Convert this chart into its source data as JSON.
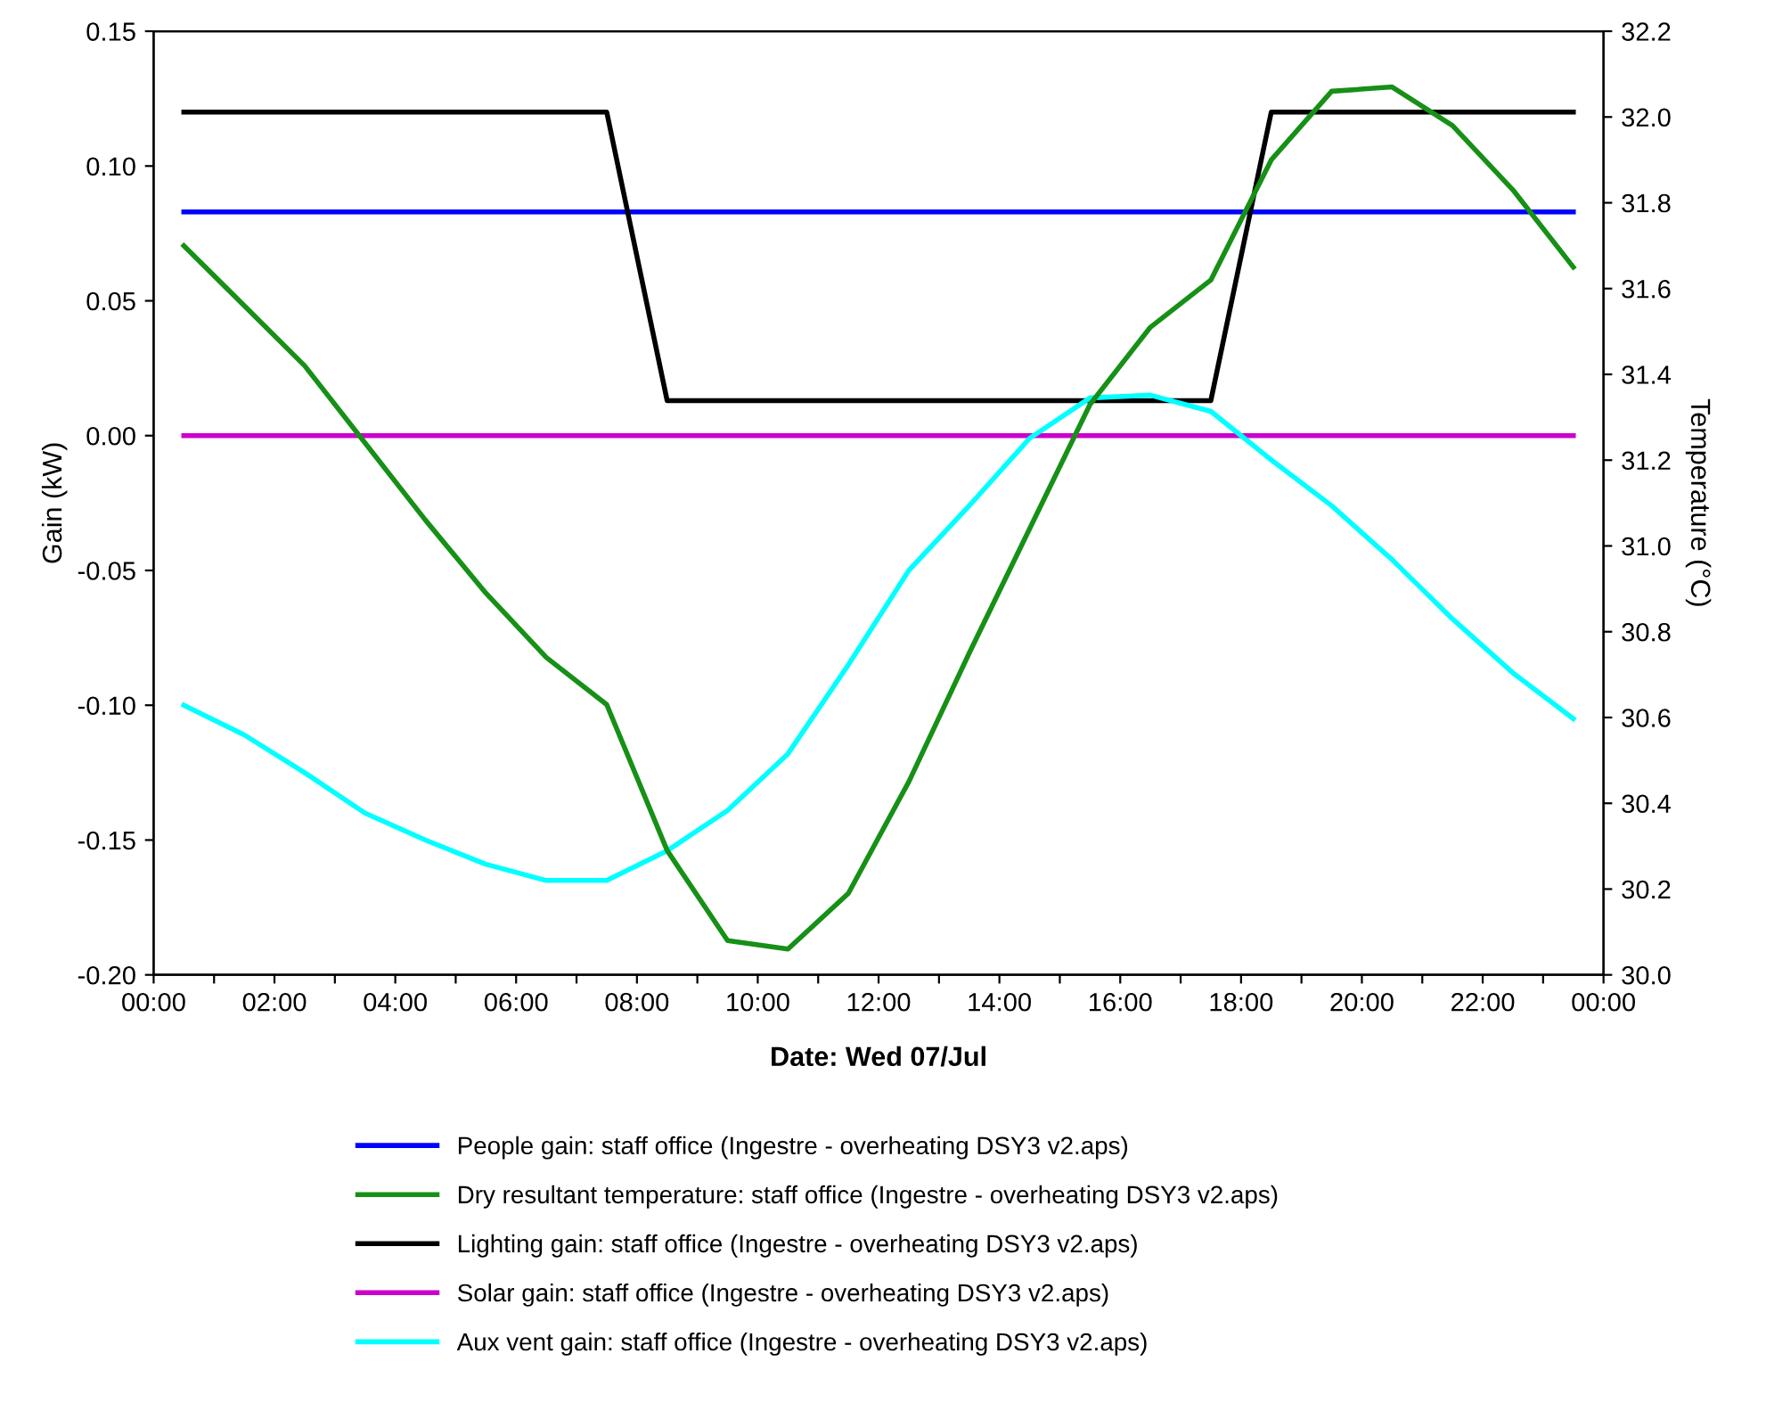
{
  "chart_data": {
    "type": "line",
    "xlabel": "Date: Wed 07/Jul",
    "ylabel": "Gain (kW)",
    "y2label": "Temperature (°C)",
    "x": [
      0.5,
      1.5,
      2.5,
      3.5,
      4.5,
      5.5,
      6.5,
      7.5,
      8.5,
      9.5,
      10.5,
      11.5,
      12.5,
      13.5,
      14.5,
      15.5,
      16.5,
      17.5,
      18.5,
      19.5,
      20.5,
      21.5,
      22.5,
      23.5
    ],
    "series": [
      {
        "name": "People gain: staff office (Ingestre - overheating DSY3 v2.aps)",
        "color": "#0000ff",
        "values": [
          0.083,
          0.083,
          0.083,
          0.083,
          0.083,
          0.083,
          0.083,
          0.083,
          0.083,
          0.083,
          0.083,
          0.083,
          0.083,
          0.083,
          0.083,
          0.083,
          0.083,
          0.083,
          0.083,
          0.083,
          0.083,
          0.083,
          0.083,
          0.083
        ]
      },
      {
        "name": "Dry resultant temperature: staff office (Ingestre - overheating DSY3 v2.aps)",
        "color": "#169016",
        "axis": "y2",
        "values": [
          31.7,
          31.56,
          31.42,
          31.24,
          31.06,
          30.89,
          30.74,
          30.63,
          30.29,
          30.08,
          30.06,
          30.19,
          30.45,
          30.75,
          31.04,
          31.33,
          31.51,
          31.62,
          31.9,
          32.06,
          32.07,
          31.98,
          31.83,
          31.65
        ]
      },
      {
        "name": "Lighting gain: staff office (Ingestre - overheating DSY3 v2.aps)",
        "color": "#000000",
        "values": [
          0.12,
          0.12,
          0.12,
          0.12,
          0.12,
          0.12,
          0.12,
          0.12,
          0.013,
          0.013,
          0.013,
          0.013,
          0.013,
          0.013,
          0.013,
          0.013,
          0.013,
          0.013,
          0.12,
          0.12,
          0.12,
          0.12,
          0.12,
          0.12
        ]
      },
      {
        "name": "Solar gain: staff office (Ingestre - overheating DSY3 v2.aps)",
        "color": "#cc00cc",
        "values": [
          0,
          0,
          0,
          0,
          0,
          0,
          0,
          0,
          0,
          0,
          0,
          0,
          0,
          0,
          0,
          0,
          0,
          0,
          0,
          0,
          0,
          0,
          0,
          0
        ]
      },
      {
        "name": "Aux vent gain: staff office (Ingestre - overheating DSY3 v2.aps)",
        "color": "#00ffff",
        "values": [
          -0.1,
          -0.111,
          -0.125,
          -0.14,
          -0.15,
          -0.159,
          -0.165,
          -0.165,
          -0.154,
          -0.139,
          -0.118,
          -0.085,
          -0.05,
          -0.026,
          -0.001,
          0.014,
          0.015,
          0.009,
          -0.009,
          -0.026,
          -0.046,
          -0.068,
          -0.088,
          -0.105
        ]
      }
    ],
    "xlim": [
      0,
      24
    ],
    "xticks": [
      {
        "value": 0,
        "label": "00:00"
      },
      {
        "value": 1,
        "label": null
      },
      {
        "value": 2,
        "label": "02:00"
      },
      {
        "value": 3,
        "label": null
      },
      {
        "value": 4,
        "label": "04:00"
      },
      {
        "value": 5,
        "label": null
      },
      {
        "value": 6,
        "label": "06:00"
      },
      {
        "value": 7,
        "label": null
      },
      {
        "value": 8,
        "label": "08:00"
      },
      {
        "value": 9,
        "label": null
      },
      {
        "value": 10,
        "label": "10:00"
      },
      {
        "value": 11,
        "label": null
      },
      {
        "value": 12,
        "label": "12:00"
      },
      {
        "value": 13,
        "label": null
      },
      {
        "value": 14,
        "label": "14:00"
      },
      {
        "value": 15,
        "label": null
      },
      {
        "value": 16,
        "label": "16:00"
      },
      {
        "value": 17,
        "label": null
      },
      {
        "value": 18,
        "label": "18:00"
      },
      {
        "value": 19,
        "label": null
      },
      {
        "value": 20,
        "label": "20:00"
      },
      {
        "value": 21,
        "label": null
      },
      {
        "value": 22,
        "label": "22:00"
      },
      {
        "value": 23,
        "label": null
      },
      {
        "value": 24,
        "label": "00:00"
      }
    ],
    "ylim": [
      -0.2,
      0.15
    ],
    "yticks": [
      {
        "value": -0.2,
        "label": "-0.20"
      },
      {
        "value": -0.15,
        "label": "-0.15"
      },
      {
        "value": -0.1,
        "label": "-0.10"
      },
      {
        "value": -0.05,
        "label": "-0.05"
      },
      {
        "value": 0,
        "label": "0.00"
      },
      {
        "value": 0.05,
        "label": "0.05"
      },
      {
        "value": 0.1,
        "label": "0.10"
      },
      {
        "value": 0.15,
        "label": "0.15"
      }
    ],
    "y2lim": [
      30.0,
      32.2
    ],
    "y2ticks": [
      {
        "value": 30.0,
        "label": "30.0"
      },
      {
        "value": 30.2,
        "label": "30.2"
      },
      {
        "value": 30.4,
        "label": "30.4"
      },
      {
        "value": 30.6,
        "label": "30.6"
      },
      {
        "value": 30.8,
        "label": "30.8"
      },
      {
        "value": 31.0,
        "label": "31.0"
      },
      {
        "value": 31.2,
        "label": "31.2"
      },
      {
        "value": 31.4,
        "label": "31.4"
      },
      {
        "value": 31.6,
        "label": "31.6"
      },
      {
        "value": 31.8,
        "label": "31.8"
      },
      {
        "value": 32.0,
        "label": "32.0"
      },
      {
        "value": 32.2,
        "label": "32.2"
      }
    ],
    "legend": "bottom",
    "grid": false
  }
}
